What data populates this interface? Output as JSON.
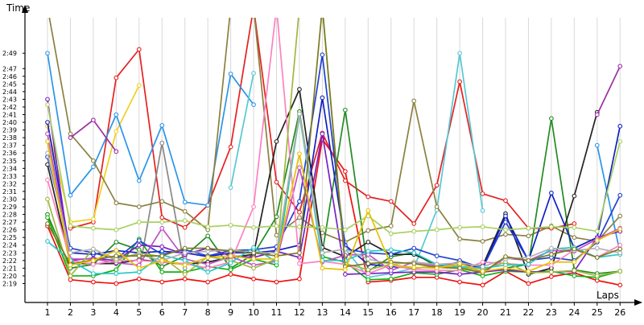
{
  "chart_data": {
    "type": "line",
    "ylabel": "Time",
    "xlabel": "Laps",
    "x": [
      1,
      2,
      3,
      4,
      5,
      6,
      7,
      8,
      9,
      10,
      11,
      12,
      13,
      14,
      15,
      16,
      17,
      18,
      19,
      20,
      21,
      22,
      23,
      24,
      25,
      26
    ],
    "y_unit": "seconds (shown as m:ss)",
    "ylim": [
      138,
      173
    ],
    "y_ticks": [
      "2:19",
      "2:20",
      "2:21",
      "2:22",
      "2:23",
      "2:24",
      "2:25",
      "2:26",
      "2:27",
      "2:28",
      "2:29",
      "2:30",
      "2:31",
      "2:32",
      "2:33",
      "2:34",
      "2:35",
      "2:36",
      "2:37",
      "2:38",
      "2:39",
      "2:40",
      "2:41",
      "2:42",
      "2:43",
      "2:44",
      "2:45",
      "2:46",
      "2:47",
      "2:49"
    ],
    "grid": true,
    "legend": "none",
    "series": [
      {
        "color": "#ee1111",
        "values": [
          146.5,
          139.5,
          139.2,
          139.0,
          139.6,
          139.2,
          139.6,
          139.2,
          140.2,
          139.6,
          139.2,
          139.6,
          157.8,
          153.6,
          139.2,
          139.4,
          139.8,
          139.8,
          139.2,
          138.8,
          140.6,
          139.0,
          139.9,
          140.4,
          139.4,
          138.8
        ]
      },
      {
        "color": "#ee1111",
        "values": [
          null,
          null,
          null,
          null,
          null,
          null,
          null,
          null,
          null,
          null,
          null,
          null,
          null,
          null,
          null,
          null,
          null,
          null,
          null,
          null,
          null,
          null,
          null,
          null,
          null,
          null
        ]
      },
      {
        "color": "#e62020",
        "values": [
          null,
          146.2,
          147.0,
          165.8,
          169.5,
          147.6,
          146.3,
          149.2,
          156.8,
          175.0,
          152.2,
          148.3,
          158.6,
          152.4,
          150.3,
          149.7,
          146.8,
          151.8,
          165.3,
          150.7,
          149.8,
          146.2,
          146.2,
          146.8,
          null,
          null
        ]
      },
      {
        "color": "#f0d020",
        "values": [
          159.5,
          147.0,
          147.4,
          158.8,
          164.8,
          null,
          null,
          null,
          null,
          null,
          null,
          null,
          null,
          null,
          null,
          null,
          null,
          null,
          null,
          null,
          null,
          null,
          null,
          null,
          null,
          null
        ]
      },
      {
        "color": "#2a95e8",
        "values": [
          169.0,
          150.5,
          154.2,
          161.0,
          152.4,
          159.6,
          149.6,
          149.2,
          166.3,
          162.3,
          null,
          null,
          null,
          null,
          null,
          null,
          null,
          null,
          null,
          null,
          null,
          null,
          null,
          null,
          null,
          null
        ]
      },
      {
        "color": "#2a95e8",
        "values": [
          null,
          null,
          null,
          null,
          null,
          null,
          null,
          null,
          null,
          null,
          null,
          null,
          null,
          null,
          null,
          null,
          null,
          null,
          null,
          null,
          null,
          null,
          null,
          null,
          157.0,
          143.0
        ]
      },
      {
        "color": "#56c8d4",
        "values": [
          null,
          null,
          null,
          null,
          null,
          null,
          null,
          null,
          151.5,
          166.4,
          null,
          null,
          null,
          143.5,
          139.8,
          140.3,
          141.0,
          148.6,
          169.0,
          148.5,
          null,
          null,
          null,
          null,
          null,
          null
        ]
      },
      {
        "color": "#888888",
        "values": [
          null,
          null,
          null,
          null,
          140.5,
          157.3,
          141.0,
          null,
          null,
          null,
          null,
          null,
          null,
          null,
          null,
          null,
          null,
          null,
          null,
          null,
          null,
          null,
          null,
          null,
          null,
          null
        ]
      },
      {
        "color": "#8b8040",
        "values": [
          175.0,
          158.5,
          155.0,
          149.5,
          149.0,
          149.7,
          148.4,
          146.0,
          175.0,
          175.0,
          145.3,
          147.6,
          145.6,
          144.4,
          145.9,
          146.5,
          162.8,
          149.0,
          144.8,
          144.5,
          145.4,
          145.2,
          146.5,
          145.0,
          144.5,
          147.8
        ]
      },
      {
        "color": "#8b8040",
        "values": [
          null,
          null,
          null,
          null,
          null,
          null,
          null,
          null,
          null,
          null,
          null,
          null,
          null,
          null,
          null,
          null,
          null,
          null,
          null,
          null,
          null,
          null,
          null,
          null,
          null,
          null
        ]
      },
      {
        "color": "#228b22",
        "values": [
          148.0,
          141.0,
          141.5,
          144.4,
          143.4,
          141.2,
          142.6,
          145.2,
          141.0,
          142.8,
          147.7,
          161.4,
          143.0,
          161.6,
          140.6,
          142.5,
          143.0,
          141.2,
          141.8,
          140.5,
          141.0,
          141.5,
          160.5,
          140.8,
          140.3,
          140.6
        ]
      },
      {
        "color": "#10b010",
        "values": [
          147.6,
          140.0,
          140.0,
          140.8,
          144.8,
          140.5,
          140.5,
          141.2,
          140.8,
          142.2,
          141.4,
          161.0,
          142.5,
          141.8,
          139.5,
          139.6,
          140.4,
          140.2,
          140.8,
          140.0,
          140.6,
          140.5,
          140.6,
          140.0,
          139.8,
          140.6
        ]
      },
      {
        "color": "#222222",
        "values": [
          154.5,
          141.6,
          141.6,
          141.6,
          142.1,
          141.8,
          141.5,
          141.8,
          142.4,
          142.8,
          157.5,
          164.3,
          143.7,
          142.5,
          144.4,
          142.8,
          142.8,
          141.5,
          141.5,
          141.3,
          148.1,
          140.2,
          141.0,
          150.4,
          161.3,
          null
        ]
      },
      {
        "color": "#1020c0",
        "values": [
          160.0,
          143.0,
          142.8,
          143.3,
          143.0,
          143.2,
          143.0,
          142.5,
          143.0,
          143.0,
          143.3,
          144.0,
          163.2,
          144.0,
          141.5,
          141.2,
          141.0,
          141.2,
          141.8,
          140.9,
          147.8,
          142.0,
          150.8,
          143.6,
          145.0,
          159.5
        ]
      },
      {
        "color": "#1020c0",
        "values": [
          null,
          null,
          null,
          null,
          null,
          null,
          null,
          null,
          null,
          null,
          null,
          null,
          null,
          null,
          null,
          null,
          null,
          null,
          null,
          null,
          null,
          null,
          null,
          null,
          null,
          null
        ]
      },
      {
        "color": "#2040d0",
        "values": [
          155.5,
          143.6,
          143.0,
          142.2,
          144.6,
          142.8,
          143.4,
          142.6,
          143.3,
          143.4,
          143.8,
          149.7,
          168.8,
          143.5,
          143.0,
          142.8,
          143.6,
          142.6,
          142.0,
          141.0,
          147.0,
          142.0,
          142.4,
          142.0,
          144.4,
          150.5
        ]
      },
      {
        "color": "#7820c8",
        "values": [
          163.0,
          142.0,
          142.3,
          142.0,
          144.0,
          143.8,
          142.8,
          143.6,
          142.6,
          142.4,
          143.2,
          142.4,
          158.5,
          140.2,
          140.3,
          140.4,
          140.5,
          140.5,
          140.2,
          140.5,
          140.8,
          140.5,
          140.5,
          140.6,
          145.0,
          145.8
        ]
      },
      {
        "color": "#9b30a0",
        "values": [
          null,
          158.0,
          160.3,
          156.2,
          null,
          null,
          null,
          null,
          null,
          null,
          null,
          null,
          null,
          null,
          null,
          null,
          null,
          null,
          null,
          null,
          null,
          null,
          null,
          null,
          161.0,
          167.3
        ]
      },
      {
        "color": "#c050c8",
        "values": [
          158.5,
          142.2,
          142.2,
          141.7,
          141.4,
          146.2,
          142.2,
          141.5,
          142.5,
          141.4,
          141.9,
          154.1,
          141.8,
          142.7,
          142.8,
          140.7,
          141.8,
          141.3,
          141.7,
          140.4,
          142.3,
          142.0,
          143.3,
          143.2,
          144.8,
          146.2
        ]
      },
      {
        "color": "#ff80c0",
        "values": [
          152.5,
          142.0,
          141.5,
          142.0,
          142.0,
          141.8,
          141.6,
          141.0,
          141.8,
          149.0,
          175.0,
          141.6,
          141.9,
          141.5,
          140.3,
          141.4,
          140.8,
          140.7,
          140.7,
          141.8,
          141.6,
          141.4,
          141.4,
          143.4,
          142.4,
          144.0
        ]
      },
      {
        "color": "#a8d060",
        "values": [
          162.3,
          146.5,
          146.2,
          146.0,
          147.0,
          147.0,
          147.2,
          146.4,
          146.6,
          146.3,
          146.5,
          146.4,
          146.3,
          146.0,
          147.8,
          145.5,
          145.8,
          146.0,
          146.3,
          146.4,
          146.0,
          146.2,
          146.4,
          146.3,
          145.8,
          157.5
        ]
      },
      {
        "color": "#b8d890",
        "values": [
          null,
          null,
          null,
          null,
          null,
          null,
          null,
          null,
          null,
          null,
          null,
          null,
          null,
          null,
          null,
          null,
          null,
          null,
          null,
          null,
          null,
          null,
          null,
          null,
          null,
          null
        ]
      },
      {
        "color": "#a0b840",
        "values": [
          150.0,
          140.0,
          143.5,
          142.0,
          143.0,
          142.5,
          140.2,
          142.5,
          142.0,
          141.0,
          142.2,
          175.0,
          175.0,
          141.6,
          140.8,
          141.5,
          141.0,
          141.2,
          141.1,
          140.7,
          141.8,
          140.4,
          140.5,
          140.7,
          140.0,
          140.6
        ]
      },
      {
        "color": "#28c8c8",
        "values": [
          144.5,
          142.0,
          140.3,
          140.3,
          140.5,
          142.7,
          142.0,
          140.5,
          141.7,
          143.7,
          141.8,
          161.0,
          142.0,
          142.0,
          143.2,
          143.4,
          143.0,
          141.5,
          141.2,
          141.0,
          141.4,
          141.5,
          143.5,
          143.7,
          142.4,
          142.8
        ]
      },
      {
        "color": "#b0b0b0",
        "values": [
          156.0,
          143.0,
          143.5,
          142.2,
          142.8,
          142.0,
          143.0,
          143.2,
          143.4,
          143.0,
          143.0,
          161.1,
          143.0,
          143.5,
          142.2,
          141.5,
          141.8,
          141.5,
          141.7,
          141.2,
          142.2,
          142.4,
          143.6,
          143.3,
          143.6,
          143.0
        ]
      },
      {
        "color": "#7a7a20",
        "values": [
          146.8,
          141.5,
          142.1,
          142.6,
          142.6,
          142.6,
          143.6,
          143.6,
          143.2,
          143.0,
          142.6,
          143.0,
          175.0,
          141.2,
          141.6,
          141.8,
          141.6,
          141.1,
          141.0,
          140.4,
          142.5,
          142.0,
          142.8,
          143.5,
          142.4,
          143.5
        ]
      },
      {
        "color": "#e8c000",
        "values": [
          157.5,
          141.4,
          142.0,
          143.3,
          141.0,
          142.0,
          141.4,
          142.4,
          142.6,
          142.2,
          142.2,
          155.9,
          141.0,
          140.8,
          148.5,
          141.4,
          141.1,
          141.0,
          141.6,
          140.6,
          141.0,
          140.6,
          141.8,
          141.8,
          144.6,
          146.1
        ]
      }
    ]
  }
}
